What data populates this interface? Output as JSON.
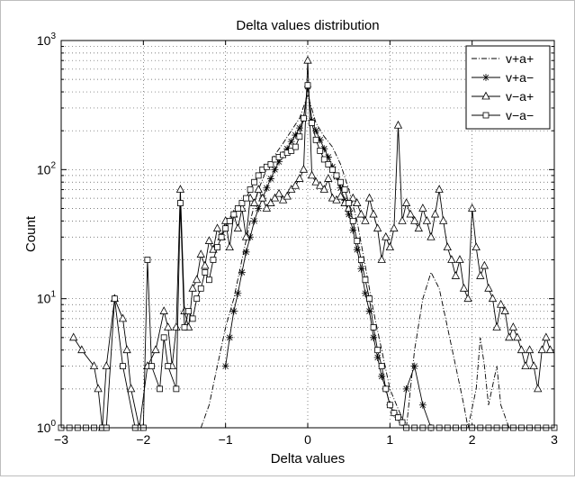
{
  "chart_data": {
    "type": "line",
    "title": "Delta values distribution",
    "xlabel": "Delta values",
    "ylabel": "Count",
    "xlim": [
      -3,
      3
    ],
    "ylim": [
      1,
      1000
    ],
    "y_scale": "log",
    "grid": "dotted, major and minor",
    "legend_position": "top-right",
    "x_ticks": [
      -3,
      -2,
      -1,
      0,
      1,
      2,
      3
    ],
    "x_tick_labels": [
      "−3",
      "−2",
      "−1",
      "0",
      "1",
      "2",
      "3"
    ],
    "y_ticks": [
      {
        "value": 1,
        "base": "10",
        "exp": "0"
      },
      {
        "value": 10,
        "base": "10",
        "exp": "1"
      },
      {
        "value": 100,
        "base": "10",
        "exp": "2"
      },
      {
        "value": 1000,
        "base": "10",
        "exp": "3"
      }
    ],
    "series": [
      {
        "name": "v+a+",
        "line_style": "dashdot",
        "marker": "none",
        "points": [
          [
            -1.3,
            1
          ],
          [
            -1.2,
            1.5
          ],
          [
            -1.1,
            3
          ],
          [
            -1.0,
            6
          ],
          [
            -0.9,
            10
          ],
          [
            -0.8,
            20
          ],
          [
            -0.7,
            40
          ],
          [
            -0.6,
            70
          ],
          [
            -0.5,
            100
          ],
          [
            -0.4,
            130
          ],
          [
            -0.3,
            160
          ],
          [
            -0.2,
            200
          ],
          [
            -0.1,
            250
          ],
          [
            0,
            380
          ],
          [
            0.1,
            230
          ],
          [
            0.2,
            180
          ],
          [
            0.3,
            150
          ],
          [
            0.4,
            110
          ],
          [
            0.5,
            70
          ],
          [
            0.6,
            40
          ],
          [
            0.7,
            18
          ],
          [
            0.8,
            8
          ],
          [
            0.9,
            4
          ],
          [
            1.0,
            2
          ],
          [
            1.1,
            1.4
          ],
          [
            1.2,
            1
          ],
          [
            1.3,
            4
          ],
          [
            1.4,
            10
          ],
          [
            1.5,
            16
          ],
          [
            1.6,
            12
          ],
          [
            1.7,
            6
          ],
          [
            1.8,
            3
          ],
          [
            1.9,
            1.5
          ],
          [
            1.95,
            1
          ],
          [
            2.05,
            2
          ],
          [
            2.1,
            5
          ],
          [
            2.15,
            3
          ],
          [
            2.2,
            1.5
          ],
          [
            2.3,
            3
          ],
          [
            2.35,
            1.5
          ],
          [
            2.45,
            1
          ],
          [
            2.6,
            1
          ]
        ]
      },
      {
        "name": "v+a−",
        "line_style": "solid",
        "marker": "star",
        "points": [
          [
            -1.0,
            3
          ],
          [
            -0.95,
            5
          ],
          [
            -0.9,
            8
          ],
          [
            -0.85,
            11
          ],
          [
            -0.8,
            16
          ],
          [
            -0.75,
            23
          ],
          [
            -0.7,
            30
          ],
          [
            -0.65,
            40
          ],
          [
            -0.6,
            50
          ],
          [
            -0.55,
            60
          ],
          [
            -0.5,
            72
          ],
          [
            -0.45,
            85
          ],
          [
            -0.4,
            100
          ],
          [
            -0.35,
            115
          ],
          [
            -0.3,
            130
          ],
          [
            -0.25,
            145
          ],
          [
            -0.2,
            165
          ],
          [
            -0.15,
            185
          ],
          [
            -0.1,
            210
          ],
          [
            -0.05,
            250
          ],
          [
            0,
            440
          ],
          [
            0.05,
            240
          ],
          [
            0.1,
            200
          ],
          [
            0.15,
            170
          ],
          [
            0.2,
            145
          ],
          [
            0.25,
            125
          ],
          [
            0.3,
            105
          ],
          [
            0.35,
            88
          ],
          [
            0.4,
            72
          ],
          [
            0.45,
            58
          ],
          [
            0.5,
            45
          ],
          [
            0.55,
            34
          ],
          [
            0.6,
            24
          ],
          [
            0.65,
            17
          ],
          [
            0.7,
            11
          ],
          [
            0.75,
            8
          ],
          [
            0.8,
            5
          ],
          [
            0.85,
            3.5
          ],
          [
            0.9,
            2.5
          ],
          [
            0.95,
            2
          ],
          [
            1.0,
            1.5
          ],
          [
            1.05,
            1.3
          ],
          [
            1.1,
            1.2
          ],
          [
            1.15,
            1.1
          ],
          [
            1.2,
            2
          ],
          [
            1.3,
            3
          ],
          [
            1.4,
            1.5
          ],
          [
            1.5,
            1
          ]
        ]
      },
      {
        "name": "v−a+",
        "line_style": "solid",
        "marker": "triangle",
        "points": [
          [
            -2.85,
            5
          ],
          [
            -2.75,
            4
          ],
          [
            -2.6,
            3
          ],
          [
            -2.55,
            2
          ],
          [
            -2.5,
            1
          ],
          [
            -2.45,
            3
          ],
          [
            -2.35,
            10
          ],
          [
            -2.25,
            7
          ],
          [
            -2.2,
            4
          ],
          [
            -2.15,
            2
          ],
          [
            -2.05,
            1
          ],
          [
            -1.95,
            3
          ],
          [
            -1.85,
            4
          ],
          [
            -1.75,
            8
          ],
          [
            -1.7,
            6
          ],
          [
            -1.65,
            3
          ],
          [
            -1.6,
            6
          ],
          [
            -1.55,
            70
          ],
          [
            -1.5,
            8
          ],
          [
            -1.45,
            6
          ],
          [
            -1.4,
            12
          ],
          [
            -1.35,
            14
          ],
          [
            -1.3,
            22
          ],
          [
            -1.25,
            18
          ],
          [
            -1.2,
            28
          ],
          [
            -1.15,
            24
          ],
          [
            -1.1,
            35
          ],
          [
            -1.05,
            30
          ],
          [
            -1.0,
            40
          ],
          [
            -0.95,
            25
          ],
          [
            -0.9,
            45
          ],
          [
            -0.85,
            35
          ],
          [
            -0.8,
            50
          ],
          [
            -0.75,
            30
          ],
          [
            -0.7,
            60
          ],
          [
            -0.65,
            55
          ],
          [
            -0.6,
            70
          ],
          [
            -0.55,
            60
          ],
          [
            -0.5,
            50
          ],
          [
            -0.45,
            55
          ],
          [
            -0.4,
            60
          ],
          [
            -0.35,
            65
          ],
          [
            -0.3,
            58
          ],
          [
            -0.25,
            62
          ],
          [
            -0.2,
            70
          ],
          [
            -0.15,
            75
          ],
          [
            -0.1,
            85
          ],
          [
            -0.05,
            100
          ],
          [
            0,
            700
          ],
          [
            0.05,
            90
          ],
          [
            0.1,
            80
          ],
          [
            0.15,
            75
          ],
          [
            0.2,
            70
          ],
          [
            0.25,
            85
          ],
          [
            0.3,
            60
          ],
          [
            0.35,
            58
          ],
          [
            0.4,
            62
          ],
          [
            0.45,
            55
          ],
          [
            0.5,
            50
          ],
          [
            0.55,
            60
          ],
          [
            0.6,
            55
          ],
          [
            0.65,
            45
          ],
          [
            0.7,
            40
          ],
          [
            0.75,
            60
          ],
          [
            0.8,
            45
          ],
          [
            0.85,
            35
          ],
          [
            0.9,
            20
          ],
          [
            0.95,
            30
          ],
          [
            1.0,
            25
          ],
          [
            1.05,
            35
          ],
          [
            1.1,
            220
          ],
          [
            1.15,
            40
          ],
          [
            1.2,
            55
          ],
          [
            1.25,
            45
          ],
          [
            1.3,
            40
          ],
          [
            1.35,
            35
          ],
          [
            1.4,
            50
          ],
          [
            1.45,
            40
          ],
          [
            1.5,
            30
          ],
          [
            1.55,
            45
          ],
          [
            1.6,
            70
          ],
          [
            1.65,
            40
          ],
          [
            1.7,
            25
          ],
          [
            1.75,
            20
          ],
          [
            1.8,
            15
          ],
          [
            1.85,
            20
          ],
          [
            1.9,
            12
          ],
          [
            1.95,
            10
          ],
          [
            2.0,
            50
          ],
          [
            2.05,
            25
          ],
          [
            2.1,
            15
          ],
          [
            2.15,
            18
          ],
          [
            2.2,
            12
          ],
          [
            2.25,
            10
          ],
          [
            2.3,
            6
          ],
          [
            2.35,
            9
          ],
          [
            2.4,
            8
          ],
          [
            2.45,
            5
          ],
          [
            2.5,
            6
          ],
          [
            2.55,
            5
          ],
          [
            2.6,
            4
          ],
          [
            2.65,
            3
          ],
          [
            2.7,
            4
          ],
          [
            2.75,
            3
          ],
          [
            2.8,
            2
          ],
          [
            2.85,
            4
          ],
          [
            2.9,
            5
          ],
          [
            2.95,
            4
          ]
        ]
      },
      {
        "name": "v−a−",
        "line_style": "solid",
        "marker": "square",
        "points": [
          [
            -3.0,
            1
          ],
          [
            -2.9,
            1
          ],
          [
            -2.8,
            1
          ],
          [
            -2.7,
            1
          ],
          [
            -2.6,
            1
          ],
          [
            -2.5,
            1
          ],
          [
            -2.45,
            1
          ],
          [
            -2.35,
            10
          ],
          [
            -2.25,
            3
          ],
          [
            -2.1,
            1
          ],
          [
            -2.0,
            1
          ],
          [
            -1.95,
            20
          ],
          [
            -1.9,
            3
          ],
          [
            -1.8,
            2
          ],
          [
            -1.75,
            5
          ],
          [
            -1.7,
            3
          ],
          [
            -1.6,
            2
          ],
          [
            -1.55,
            55
          ],
          [
            -1.5,
            6
          ],
          [
            -1.45,
            8
          ],
          [
            -1.4,
            7
          ],
          [
            -1.35,
            10
          ],
          [
            -1.3,
            12
          ],
          [
            -1.25,
            16
          ],
          [
            -1.2,
            14
          ],
          [
            -1.15,
            20
          ],
          [
            -1.1,
            25
          ],
          [
            -1.05,
            30
          ],
          [
            -1.0,
            35
          ],
          [
            -0.95,
            40
          ],
          [
            -0.9,
            45
          ],
          [
            -0.85,
            50
          ],
          [
            -0.8,
            55
          ],
          [
            -0.75,
            60
          ],
          [
            -0.7,
            70
          ],
          [
            -0.65,
            80
          ],
          [
            -0.6,
            90
          ],
          [
            -0.55,
            100
          ],
          [
            -0.5,
            105
          ],
          [
            -0.45,
            110
          ],
          [
            -0.4,
            120
          ],
          [
            -0.35,
            125
          ],
          [
            -0.3,
            130
          ],
          [
            -0.25,
            135
          ],
          [
            -0.2,
            140
          ],
          [
            -0.15,
            150
          ],
          [
            -0.1,
            180
          ],
          [
            -0.05,
            250
          ],
          [
            0,
            450
          ],
          [
            0.05,
            230
          ],
          [
            0.1,
            170
          ],
          [
            0.15,
            140
          ],
          [
            0.2,
            120
          ],
          [
            0.25,
            110
          ],
          [
            0.3,
            100
          ],
          [
            0.35,
            90
          ],
          [
            0.4,
            80
          ],
          [
            0.45,
            70
          ],
          [
            0.5,
            55
          ],
          [
            0.55,
            40
          ],
          [
            0.6,
            28
          ],
          [
            0.65,
            20
          ],
          [
            0.7,
            14
          ],
          [
            0.75,
            10
          ],
          [
            0.8,
            6
          ],
          [
            0.85,
            4
          ],
          [
            0.9,
            3
          ],
          [
            0.95,
            2
          ],
          [
            1.0,
            1.5
          ],
          [
            1.05,
            1.3
          ],
          [
            1.1,
            1.2
          ],
          [
            1.15,
            1.1
          ],
          [
            1.2,
            1
          ],
          [
            1.3,
            1
          ],
          [
            1.4,
            1
          ],
          [
            1.5,
            1
          ],
          [
            1.6,
            1
          ],
          [
            1.7,
            1
          ],
          [
            1.8,
            1
          ],
          [
            1.9,
            1
          ],
          [
            2.0,
            1
          ],
          [
            2.1,
            1
          ],
          [
            2.2,
            1
          ],
          [
            2.3,
            1
          ],
          [
            2.4,
            1
          ],
          [
            2.5,
            1
          ],
          [
            2.6,
            1
          ],
          [
            2.7,
            1
          ],
          [
            2.8,
            1
          ],
          [
            2.9,
            1
          ],
          [
            3.0,
            1
          ]
        ]
      }
    ]
  }
}
